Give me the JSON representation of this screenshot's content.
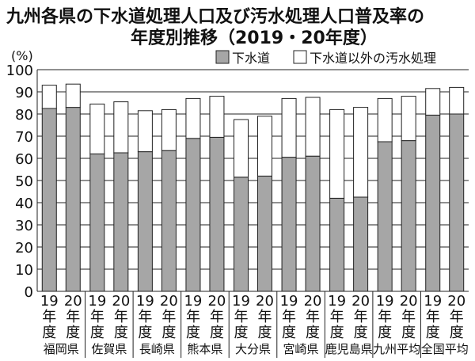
{
  "chart_data": {
    "type": "bar",
    "stacked": true,
    "title_lines": [
      "九州各県の下水道処理人口及び汚水処理人口普及率の",
      "年度別推移（2019・20年度）"
    ],
    "ylabel": "(%)",
    "ylim": [
      0,
      100
    ],
    "yticks": [
      0,
      10,
      20,
      30,
      40,
      50,
      60,
      70,
      80,
      90,
      100
    ],
    "legend_position": "top-right",
    "colors": {
      "sewer": "#a6a6a6",
      "other": "#ffffff",
      "stroke": "#222222"
    },
    "groups": [
      "福岡県",
      "佐賀県",
      "長崎県",
      "熊本県",
      "大分県",
      "宮崎県",
      "鹿児島県",
      "九州平均",
      "全国平均"
    ],
    "years": [
      [
        "19",
        "年",
        "度"
      ],
      [
        "20",
        "年",
        "度"
      ]
    ],
    "series": [
      {
        "name": "下水道",
        "values": [
          82.5,
          83.0,
          62.0,
          62.5,
          63.0,
          63.5,
          69.0,
          69.5,
          51.5,
          52.0,
          60.5,
          61.0,
          42.0,
          42.5,
          67.5,
          68.0,
          79.5,
          80.0
        ]
      },
      {
        "name": "下水道以外の汚水処理",
        "values": [
          10.5,
          10.5,
          22.5,
          23.0,
          18.5,
          18.5,
          18.0,
          18.5,
          26.0,
          27.0,
          26.5,
          26.5,
          40.0,
          40.5,
          19.5,
          20.0,
          12.0,
          12.0
        ]
      }
    ]
  }
}
